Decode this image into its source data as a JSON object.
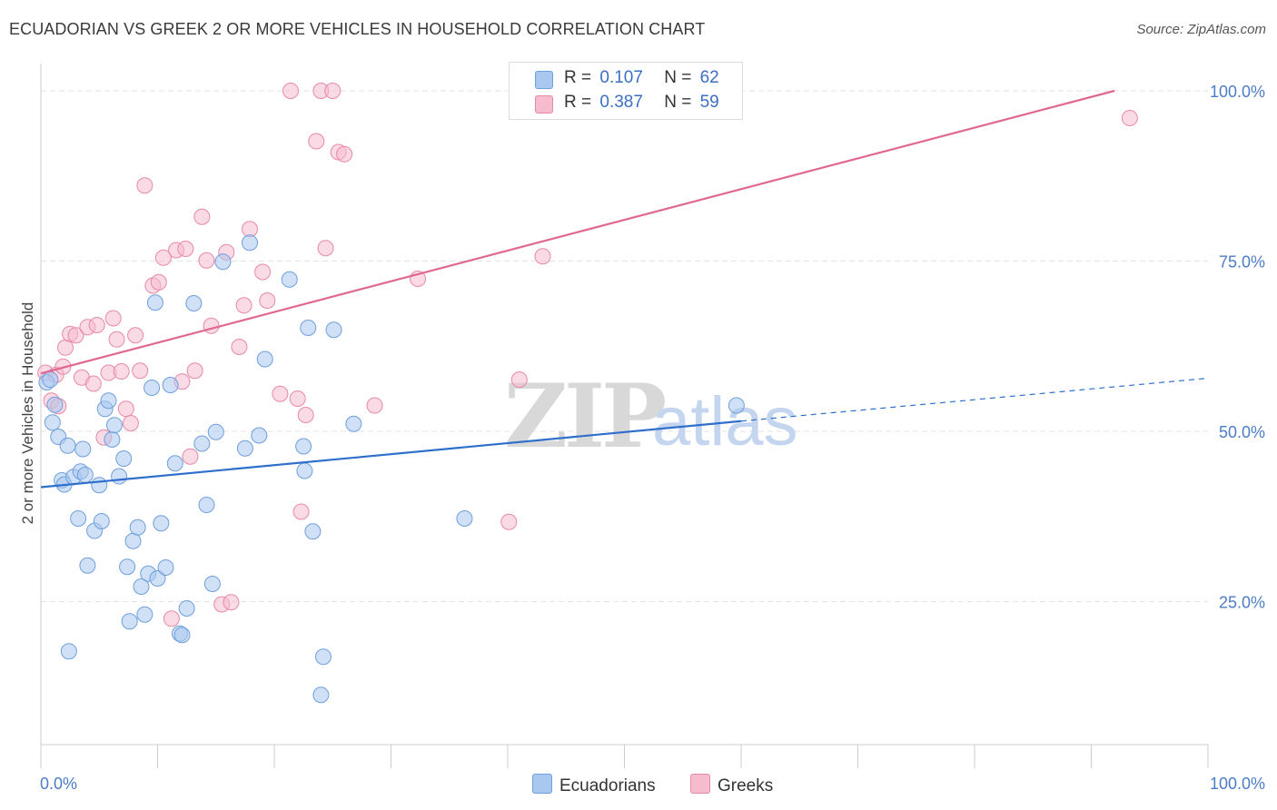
{
  "header": {
    "title": "ECUADORIAN VS GREEK 2 OR MORE VEHICLES IN HOUSEHOLD CORRELATION CHART",
    "source": "Source: ZipAtlas.com"
  },
  "legend": {
    "r_label": "R =",
    "n_label": "N =",
    "items": [
      {
        "name": "Ecuadorians",
        "r": "0.107",
        "n": "62",
        "color": "#a9c8f0",
        "stroke": "#6f9fdc"
      },
      {
        "name": "Greeks",
        "r": "0.387",
        "n": "59",
        "color": "#f6bccd",
        "stroke": "#e88aa7"
      }
    ]
  },
  "colors": {
    "blue_line": "#2f6fcc",
    "pink_line": "#e06890",
    "grid": "#e3e3e3",
    "tick": "#4d7cc7"
  },
  "watermark": {
    "zip": "ZIP",
    "atlas": "atlas"
  },
  "chart_data": {
    "type": "scatter",
    "title": "ECUADORIAN VS GREEK 2 OR MORE VEHICLES IN HOUSEHOLD CORRELATION CHART",
    "xlabel": "",
    "ylabel": "2 or more Vehicles in Household",
    "xlim": [
      0,
      100
    ],
    "ylim": [
      4,
      104
    ],
    "x_tick_labels": [
      "0.0%",
      "100.0%"
    ],
    "y_ticks": [
      25,
      50,
      75,
      100
    ],
    "y_tick_labels": [
      "25.0%",
      "50.0%",
      "75.0%",
      "100.0%"
    ],
    "grid": true,
    "series": [
      {
        "name": "Ecuadorians",
        "trend": {
          "x0": 0,
          "y0": 41.8,
          "x1": 60,
          "y1": 51.5,
          "dash_x1": 100,
          "dash_y1": 57.8
        },
        "points": [
          [
            0.5,
            57.2
          ],
          [
            0.8,
            57.6
          ],
          [
            1.0,
            51.3
          ],
          [
            1.2,
            53.9
          ],
          [
            1.5,
            49.2
          ],
          [
            1.8,
            42.8
          ],
          [
            2.0,
            42.2
          ],
          [
            2.3,
            47.9
          ],
          [
            2.4,
            17.7
          ],
          [
            2.8,
            43.3
          ],
          [
            3.2,
            37.2
          ],
          [
            3.4,
            44.1
          ],
          [
            3.6,
            47.4
          ],
          [
            3.8,
            43.6
          ],
          [
            4.0,
            30.3
          ],
          [
            4.6,
            35.4
          ],
          [
            5.0,
            42.1
          ],
          [
            5.2,
            36.8
          ],
          [
            5.5,
            53.3
          ],
          [
            5.8,
            54.5
          ],
          [
            6.1,
            48.8
          ],
          [
            6.3,
            50.9
          ],
          [
            6.7,
            43.4
          ],
          [
            7.1,
            46.0
          ],
          [
            7.4,
            30.1
          ],
          [
            7.6,
            22.1
          ],
          [
            7.9,
            33.9
          ],
          [
            8.3,
            35.9
          ],
          [
            8.6,
            27.2
          ],
          [
            8.9,
            23.1
          ],
          [
            9.2,
            29.1
          ],
          [
            9.5,
            56.4
          ],
          [
            9.8,
            68.9
          ],
          [
            10.0,
            28.4
          ],
          [
            10.3,
            36.5
          ],
          [
            10.7,
            30.0
          ],
          [
            11.1,
            56.8
          ],
          [
            11.5,
            45.3
          ],
          [
            11.9,
            20.3
          ],
          [
            12.1,
            20.1
          ],
          [
            12.5,
            24.0
          ],
          [
            13.1,
            68.8
          ],
          [
            13.8,
            48.2
          ],
          [
            14.2,
            39.2
          ],
          [
            14.7,
            27.6
          ],
          [
            15.0,
            49.9
          ],
          [
            15.6,
            74.9
          ],
          [
            17.5,
            47.5
          ],
          [
            17.9,
            77.7
          ],
          [
            18.7,
            49.4
          ],
          [
            19.2,
            60.6
          ],
          [
            21.3,
            72.3
          ],
          [
            22.5,
            47.8
          ],
          [
            22.6,
            44.2
          ],
          [
            22.9,
            65.2
          ],
          [
            23.3,
            35.3
          ],
          [
            24.0,
            11.3
          ],
          [
            24.2,
            16.9
          ],
          [
            25.1,
            64.9
          ],
          [
            26.8,
            51.1
          ],
          [
            36.3,
            37.2
          ],
          [
            59.6,
            53.8
          ]
        ]
      },
      {
        "name": "Greeks",
        "trend": {
          "x0": 0,
          "y0": 58.5,
          "x1": 92,
          "y1": 100.0
        },
        "points": [
          [
            0.4,
            58.6
          ],
          [
            0.9,
            54.5
          ],
          [
            1.3,
            58.3
          ],
          [
            1.5,
            53.7
          ],
          [
            1.9,
            59.5
          ],
          [
            2.1,
            62.3
          ],
          [
            2.5,
            64.3
          ],
          [
            3.0,
            64.1
          ],
          [
            3.5,
            57.9
          ],
          [
            4.0,
            65.3
          ],
          [
            4.5,
            57.0
          ],
          [
            4.8,
            65.6
          ],
          [
            5.4,
            49.1
          ],
          [
            5.8,
            58.6
          ],
          [
            6.2,
            66.6
          ],
          [
            6.5,
            63.5
          ],
          [
            6.9,
            58.8
          ],
          [
            7.3,
            53.3
          ],
          [
            7.7,
            51.2
          ],
          [
            8.1,
            64.1
          ],
          [
            8.5,
            58.9
          ],
          [
            8.9,
            86.1
          ],
          [
            9.6,
            71.4
          ],
          [
            10.1,
            71.9
          ],
          [
            10.5,
            75.5
          ],
          [
            11.2,
            22.5
          ],
          [
            11.6,
            76.6
          ],
          [
            12.1,
            57.3
          ],
          [
            12.4,
            76.8
          ],
          [
            12.8,
            46.3
          ],
          [
            13.2,
            58.9
          ],
          [
            13.8,
            81.5
          ],
          [
            14.2,
            75.1
          ],
          [
            14.6,
            65.5
          ],
          [
            15.5,
            24.6
          ],
          [
            15.9,
            76.3
          ],
          [
            16.3,
            24.9
          ],
          [
            17.0,
            62.4
          ],
          [
            17.4,
            68.5
          ],
          [
            17.9,
            79.7
          ],
          [
            19.0,
            73.4
          ],
          [
            19.4,
            69.2
          ],
          [
            20.5,
            55.5
          ],
          [
            21.4,
            100.0
          ],
          [
            22.0,
            54.8
          ],
          [
            22.3,
            38.2
          ],
          [
            22.7,
            52.4
          ],
          [
            23.6,
            92.6
          ],
          [
            24.0,
            100.0
          ],
          [
            24.4,
            76.9
          ],
          [
            25.0,
            100.0
          ],
          [
            25.5,
            91.0
          ],
          [
            26.0,
            90.7
          ],
          [
            28.6,
            53.8
          ],
          [
            32.3,
            72.4
          ],
          [
            40.1,
            36.7
          ],
          [
            41.0,
            57.6
          ],
          [
            43.0,
            75.7
          ],
          [
            93.3,
            96.0
          ]
        ]
      }
    ]
  }
}
